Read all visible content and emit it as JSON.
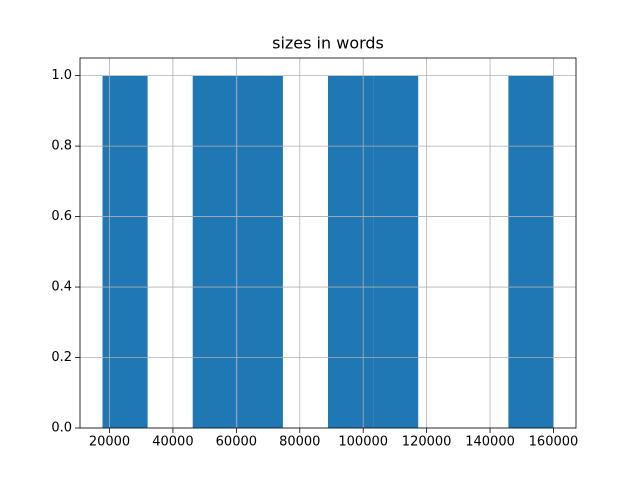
{
  "chart_data": {
    "type": "histogram",
    "title": "sizes in words",
    "bins": [
      17800,
      32020,
      46240,
      60460,
      74680,
      88900,
      103120,
      117340,
      131560,
      145780,
      160000
    ],
    "values": [
      1,
      0,
      1,
      1,
      0,
      1,
      1,
      0,
      0,
      1
    ],
    "color": "#1f77b4",
    "xlim": [
      10700,
      167100
    ],
    "xticks": [
      20000,
      40000,
      60000,
      80000,
      100000,
      120000,
      140000,
      160000
    ],
    "ylim": [
      0,
      1.05
    ],
    "yticks": [
      {
        "value": 0,
        "label": "0.0"
      },
      0.2,
      0.4,
      0.6,
      0.8,
      {
        "value": 1,
        "label": "1.0"
      }
    ],
    "grid": true
  }
}
